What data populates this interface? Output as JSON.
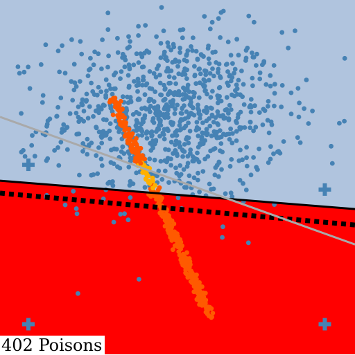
{
  "caption": {
    "text": "402 Poisons"
  },
  "colors": {
    "region_upper": "#b0c4de",
    "region_lower": "#ff0000",
    "clean_points": "#4682b4",
    "poison_points": "#ff5a00",
    "poison_points_center": "#ffb000",
    "decision_boundary": "#000000",
    "clean_boundary": "#a9a9a9",
    "plus_markers": "#4682b4"
  },
  "chart_data": {
    "type": "scatter",
    "xlim": [
      -1,
      1
    ],
    "ylim": [
      -1,
      1
    ],
    "grid": false,
    "series": [
      {
        "role": "clean-points",
        "distribution": {
          "cx": -0.05,
          "cy": 0.35,
          "sx": 0.33,
          "sy": 0.24,
          "count": 900
        }
      },
      {
        "role": "poison-points",
        "count": 402,
        "segment": {
          "x1": -0.37,
          "y1": 0.46,
          "x2": 0.18,
          "y2": -0.78
        }
      }
    ],
    "lines": [
      {
        "role": "decision-boundary",
        "style": "solid",
        "p1": [
          -1,
          -0.02
        ],
        "p2": [
          1,
          -0.18
        ]
      },
      {
        "role": "dashed-boundary",
        "style": "dotted",
        "p1": [
          -1,
          -0.09
        ],
        "p2": [
          1,
          -0.27
        ]
      },
      {
        "role": "reference-boundary",
        "style": "solid",
        "p1": [
          -1,
          0.34
        ],
        "p2": [
          1,
          -0.38
        ]
      }
    ],
    "markers": [
      {
        "role": "plus-marker",
        "x": -0.84,
        "y": 0.07
      },
      {
        "role": "plus-marker",
        "x": 0.83,
        "y": -0.07
      },
      {
        "role": "plus-marker",
        "x": -0.84,
        "y": -0.83
      },
      {
        "role": "plus-marker",
        "x": 0.83,
        "y": -0.83
      }
    ]
  }
}
